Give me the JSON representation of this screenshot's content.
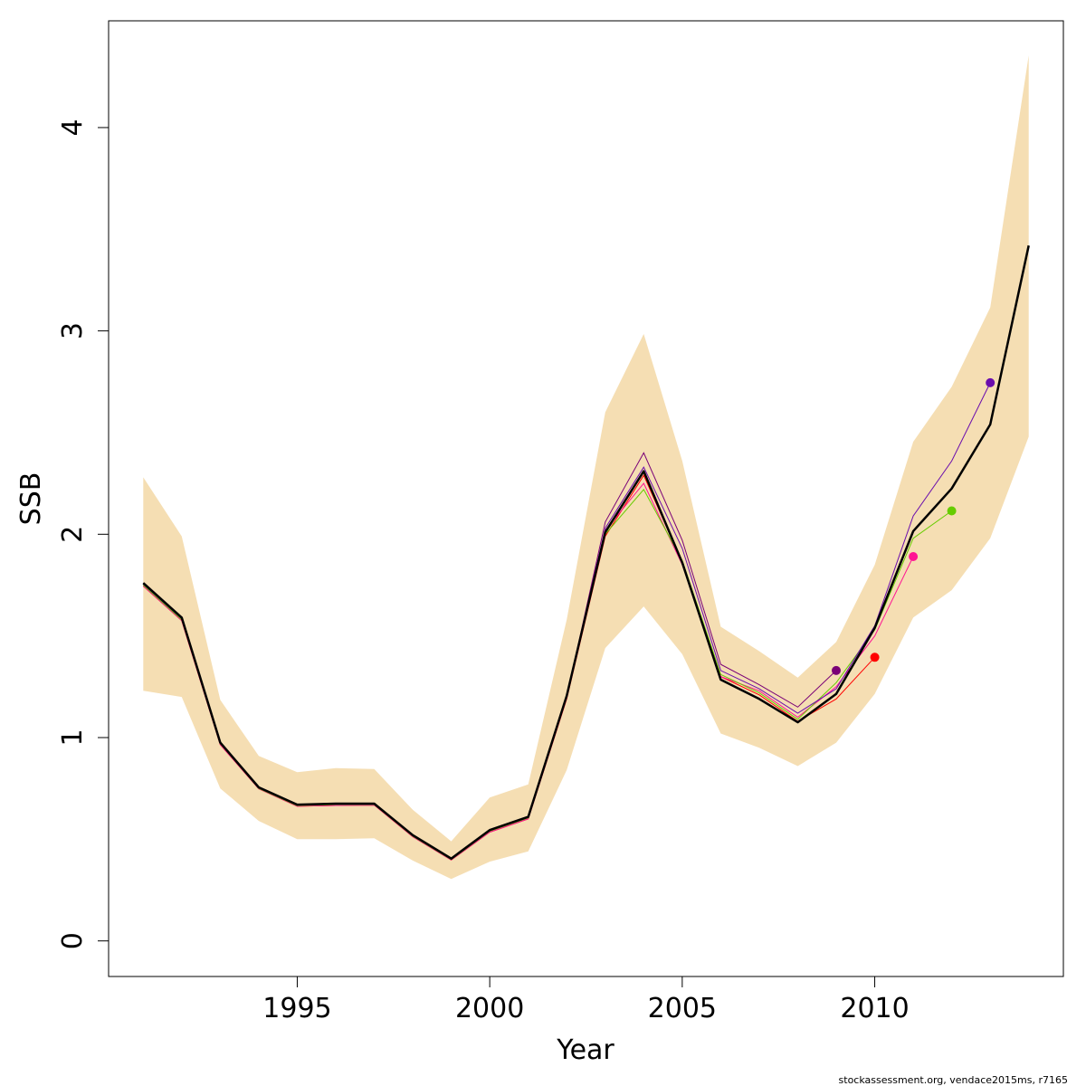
{
  "chart_data": {
    "type": "line",
    "xlabel": "Year",
    "ylabel": "SSB",
    "xlim": [
      1990.1,
      2014.9
    ],
    "ylim": [
      -0.175,
      4.525
    ],
    "x_ticks": [
      1995,
      2000,
      2005,
      2010
    ],
    "y_ticks": [
      0,
      1,
      2,
      3,
      4
    ],
    "x_tick_labels": [
      "1995",
      "2000",
      "2005",
      "2010"
    ],
    "y_tick_labels": [
      "0",
      "1",
      "2",
      "3",
      "4"
    ],
    "grid": false,
    "legend": "none",
    "confidence_band": {
      "color": "#F5DEB3",
      "x": [
        1991,
        1992,
        1993,
        1994,
        1995,
        1996,
        1997,
        1998,
        1999,
        2000,
        2001,
        2002,
        2003,
        2004,
        2005,
        2006,
        2007,
        2008,
        2009,
        2010,
        2011,
        2012,
        2013,
        2014
      ],
      "lower": [
        1.23,
        1.2,
        0.75,
        0.59,
        0.5,
        0.5,
        0.505,
        0.395,
        0.305,
        0.39,
        0.44,
        0.84,
        1.44,
        1.645,
        1.41,
        1.02,
        0.95,
        0.86,
        0.975,
        1.215,
        1.59,
        1.725,
        1.98,
        2.48
      ],
      "upper": [
        2.28,
        1.99,
        1.185,
        0.91,
        0.83,
        0.85,
        0.845,
        0.645,
        0.49,
        0.705,
        0.77,
        1.58,
        2.6,
        2.985,
        2.36,
        1.545,
        1.425,
        1.295,
        1.47,
        1.85,
        2.455,
        2.725,
        3.115,
        4.355
      ]
    },
    "main_series": {
      "color": "#000000",
      "x": [
        1991,
        1992,
        1993,
        1994,
        1995,
        1996,
        1997,
        1998,
        1999,
        2000,
        2001,
        2002,
        2003,
        2004,
        2005,
        2006,
        2007,
        2008,
        2009,
        2010,
        2011,
        2012,
        2013,
        2014
      ],
      "values": [
        1.76,
        1.59,
        0.975,
        0.755,
        0.67,
        0.675,
        0.675,
        0.52,
        0.405,
        0.545,
        0.61,
        1.205,
        2.01,
        2.31,
        1.86,
        1.285,
        1.19,
        1.075,
        1.215,
        1.54,
        2.015,
        2.225,
        2.54,
        3.42
      ]
    },
    "series": [
      {
        "color": "#7A0177",
        "end_year": 2009,
        "x": [
          1991,
          1992,
          1993,
          1994,
          1995,
          1996,
          1997,
          1998,
          1999,
          2000,
          2001,
          2002,
          2003,
          2004,
          2005,
          2006,
          2007,
          2008,
          2009
        ],
        "values": [
          1.75,
          1.58,
          0.97,
          0.75,
          0.665,
          0.67,
          0.67,
          0.515,
          0.4,
          0.54,
          0.605,
          1.2,
          2.06,
          2.4,
          1.97,
          1.36,
          1.26,
          1.15,
          1.33
        ]
      },
      {
        "color": "#FF0000",
        "end_year": 2010,
        "x": [
          1991,
          1992,
          1993,
          1994,
          1995,
          1996,
          1997,
          1998,
          1999,
          2000,
          2001,
          2002,
          2003,
          2004,
          2005,
          2006,
          2007,
          2008,
          2009,
          2010
        ],
        "values": [
          1.745,
          1.575,
          0.965,
          0.748,
          0.662,
          0.666,
          0.668,
          0.512,
          0.398,
          0.535,
          0.6,
          1.19,
          1.99,
          2.29,
          1.86,
          1.3,
          1.21,
          1.08,
          1.19,
          1.395
        ]
      },
      {
        "color": "#FF1493",
        "end_year": 2011,
        "x": [
          1991,
          1992,
          1993,
          1994,
          1995,
          1996,
          1997,
          1998,
          1999,
          2000,
          2001,
          2002,
          2003,
          2004,
          2005,
          2006,
          2007,
          2008,
          2009,
          2010,
          2011
        ],
        "values": [
          1.745,
          1.575,
          0.965,
          0.748,
          0.662,
          0.666,
          0.668,
          0.512,
          0.398,
          0.535,
          0.6,
          1.195,
          2.02,
          2.25,
          1.85,
          1.3,
          1.23,
          1.1,
          1.25,
          1.5,
          1.89
        ]
      },
      {
        "color": "#66CC00",
        "end_year": 2012,
        "x": [
          1991,
          1992,
          1993,
          1994,
          1995,
          1996,
          1997,
          1998,
          1999,
          2000,
          2001,
          2002,
          2003,
          2004,
          2005,
          2006,
          2007,
          2008,
          2009,
          2010,
          2011,
          2012
        ],
        "values": [
          1.75,
          1.58,
          0.97,
          0.75,
          0.665,
          0.67,
          0.67,
          0.515,
          0.4,
          0.54,
          0.605,
          1.2,
          2.0,
          2.22,
          1.87,
          1.31,
          1.22,
          1.09,
          1.27,
          1.53,
          1.98,
          2.115
        ]
      },
      {
        "color": "#6A0DAD",
        "end_year": 2013,
        "x": [
          1991,
          1992,
          1993,
          1994,
          1995,
          1996,
          1997,
          1998,
          1999,
          2000,
          2001,
          2002,
          2003,
          2004,
          2005,
          2006,
          2007,
          2008,
          2009,
          2010,
          2011,
          2012,
          2013
        ],
        "values": [
          1.755,
          1.585,
          0.972,
          0.752,
          0.668,
          0.672,
          0.672,
          0.518,
          0.402,
          0.543,
          0.608,
          1.205,
          2.03,
          2.33,
          1.93,
          1.33,
          1.24,
          1.12,
          1.24,
          1.55,
          2.09,
          2.36,
          2.745
        ]
      }
    ]
  },
  "footer": {
    "credit": "stockassessment.org, vendace2015ms, r7165"
  }
}
